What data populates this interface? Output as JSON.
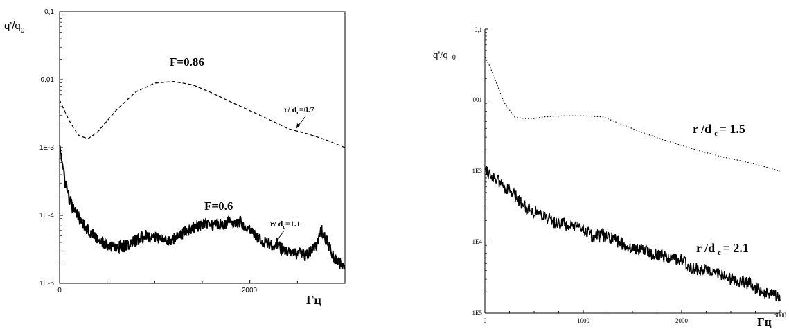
{
  "chart_data": [
    {
      "type": "line",
      "ylabel": "q'/q0",
      "ylabel_main": "q'/q",
      "ylabel_sub": "0",
      "xlabel": "Гц",
      "xlim": [
        0,
        3000
      ],
      "ylim": [
        1e-05,
        0.1
      ],
      "yscale": "log",
      "x_ticks": [
        "0",
        "2000"
      ],
      "y_ticks": [
        "1E-5",
        "1E-4",
        "1E-3",
        "0,01",
        "0,1"
      ],
      "annotations": [
        {
          "text": "F=0.86"
        },
        {
          "text": "F=0.6"
        },
        {
          "text_main": "r/ d",
          "text_sub": "c",
          "text_tail": "=0.7"
        },
        {
          "text_main": "r/ d",
          "text_sub": "c",
          "text_tail": "=1.1"
        }
      ],
      "series": [
        {
          "style": "dashed",
          "x": [
            0,
            100,
            200,
            300,
            400,
            600,
            800,
            1000,
            1200,
            1400,
            1600,
            1800,
            2000,
            2200,
            2400,
            2600,
            2800,
            3000
          ],
          "y": [
            0.005,
            0.0025,
            0.0015,
            0.00135,
            0.0017,
            0.0036,
            0.0066,
            0.0089,
            0.0094,
            0.0084,
            0.0064,
            0.0047,
            0.0035,
            0.0026,
            0.0019,
            0.0016,
            0.0013,
            0.001
          ]
        },
        {
          "style": "solid-noisy",
          "x": [
            0,
            25,
            50,
            100,
            150,
            200,
            300,
            400,
            500,
            600,
            700,
            800,
            900,
            1000,
            1100,
            1200,
            1300,
            1400,
            1500,
            1600,
            1700,
            1800,
            1900,
            2000,
            2100,
            2200,
            2300,
            2400,
            2500,
            2600,
            2700,
            2750,
            2800,
            2900,
            3000
          ],
          "y": [
            0.0012,
            0.0006,
            0.00035,
            0.00018,
            0.000115,
            0.0001,
            6e-05,
            4.5e-05,
            3.5e-05,
            3.4e-05,
            3.6e-05,
            4.2e-05,
            5e-05,
            4.8e-05,
            4.2e-05,
            4.5e-05,
            5.5e-05,
            6.5e-05,
            7.2e-05,
            7.2e-05,
            7.5e-05,
            7.8e-05,
            8e-05,
            6.5e-05,
            4.5e-05,
            3.8e-05,
            3.5e-05,
            2.8e-05,
            2.7e-05,
            2.6e-05,
            3.6e-05,
            6e-05,
            4.5e-05,
            2.2e-05,
            1.7e-05
          ]
        }
      ]
    },
    {
      "type": "line",
      "ylabel": "q'/q 0",
      "ylabel_main": "q'/q",
      "ylabel_sub": "0",
      "xlabel": "Гц",
      "xlim": [
        0,
        3000
      ],
      "ylim": [
        1e-05,
        0.1
      ],
      "yscale": "log",
      "x_ticks": [
        "0",
        "1000",
        "2000",
        "3000"
      ],
      "y_ticks": [
        "1E5",
        "1E4",
        "1E3",
        "001",
        "0,1"
      ],
      "annotations": [
        {
          "text_main": "r /d",
          "text_sub": "c",
          "text_tail": "= 1.5"
        },
        {
          "text_main": "r /d",
          "text_sub": "c",
          "text_tail": "= 2.1"
        }
      ],
      "series": [
        {
          "style": "dotted",
          "x": [
            0,
            50,
            100,
            200,
            300,
            400,
            500,
            600,
            800,
            1000,
            1200,
            1400,
            1600,
            1800,
            2000,
            2200,
            2400,
            2600,
            2800,
            3000
          ],
          "y": [
            0.04,
            0.03,
            0.02,
            0.009,
            0.0058,
            0.0055,
            0.0055,
            0.0058,
            0.006,
            0.006,
            0.0058,
            0.0045,
            0.0035,
            0.0028,
            0.0023,
            0.0019,
            0.0016,
            0.0014,
            0.0012,
            0.001
          ]
        },
        {
          "style": "solid-noisy",
          "x": [
            0,
            50,
            100,
            200,
            300,
            400,
            500,
            600,
            700,
            800,
            900,
            1000,
            1100,
            1200,
            1300,
            1400,
            1500,
            1600,
            1700,
            1800,
            1900,
            2000,
            2100,
            2200,
            2300,
            2400,
            2500,
            2600,
            2700,
            2800,
            2900,
            3000
          ],
          "y": [
            0.0012,
            0.0009,
            0.0008,
            0.0006,
            0.00045,
            0.00033,
            0.00027,
            0.00024,
            0.00019,
            0.00018,
            0.00016,
            0.000155,
            0.000115,
            0.000125,
            0.00011,
            9.5e-05,
            8e-05,
            8e-05,
            7e-05,
            6.5e-05,
            6e-05,
            5.5e-05,
            4.5e-05,
            4e-05,
            4.2e-05,
            3.5e-05,
            3e-05,
            2.8e-05,
            2.6e-05,
            2e-05,
            1.9e-05,
            1.6e-05
          ]
        }
      ]
    }
  ]
}
